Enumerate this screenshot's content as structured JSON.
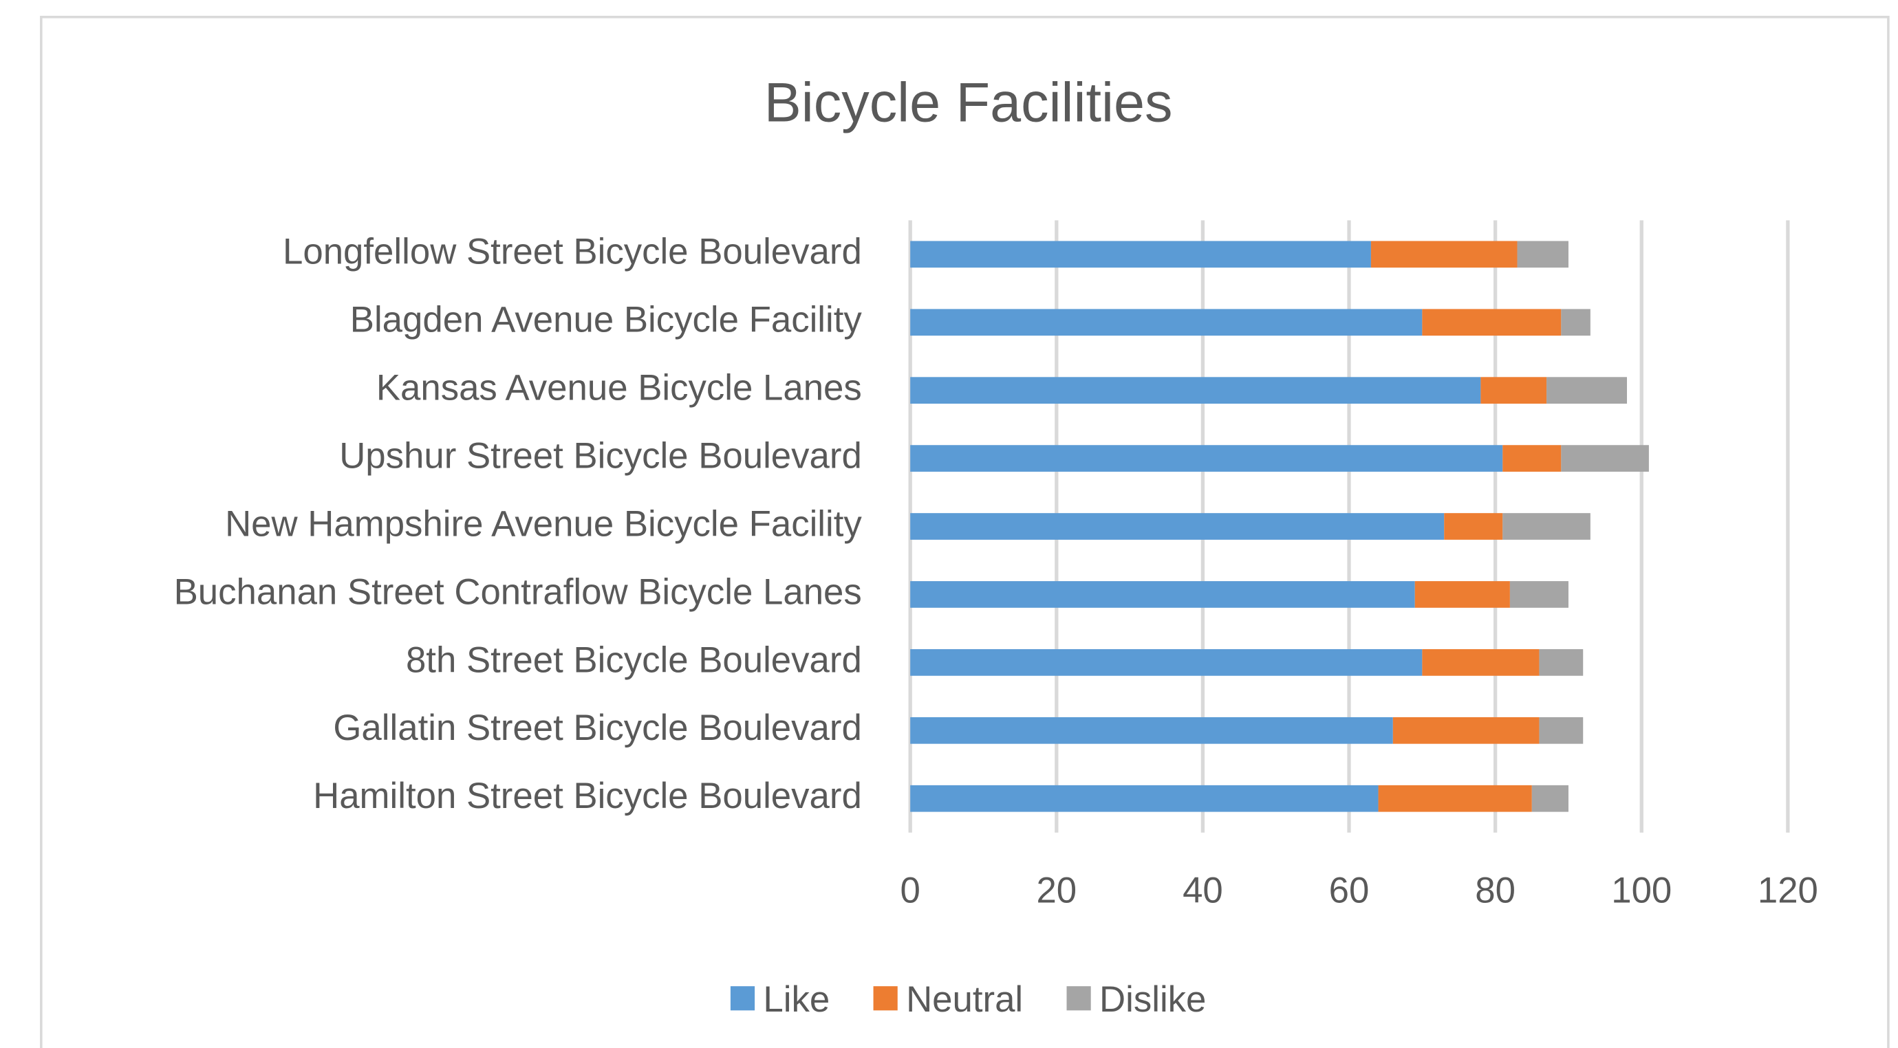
{
  "chart_data": {
    "type": "stacked_bar_horizontal",
    "title": "Bicycle Facilities",
    "categories": [
      "Longfellow Street Bicycle Boulevard",
      "Blagden Avenue Bicycle Facility",
      "Kansas Avenue Bicycle Lanes",
      "Upshur Street Bicycle Boulevard",
      "New Hampshire Avenue Bicycle Facility",
      "Buchanan Street Contraflow Bicycle Lanes",
      "8th Street Bicycle Boulevard",
      "Gallatin Street  Bicycle Boulevard",
      "Hamilton Street Bicycle Boulevard"
    ],
    "series": [
      {
        "name": "Like",
        "color": "#5b9bd5",
        "values": [
          63,
          70,
          78,
          81,
          73,
          69,
          70,
          66,
          64
        ]
      },
      {
        "name": "Neutral",
        "color": "#ed7d31",
        "values": [
          20,
          19,
          9,
          8,
          8,
          13,
          16,
          20,
          21
        ]
      },
      {
        "name": "Dislike",
        "color": "#a5a5a5",
        "values": [
          7,
          4,
          11,
          12,
          12,
          8,
          6,
          6,
          5
        ]
      }
    ],
    "xlim": [
      0,
      120
    ],
    "xticks": [
      0,
      20,
      40,
      60,
      80,
      100,
      120
    ],
    "grid": true,
    "legend": "bottom"
  }
}
